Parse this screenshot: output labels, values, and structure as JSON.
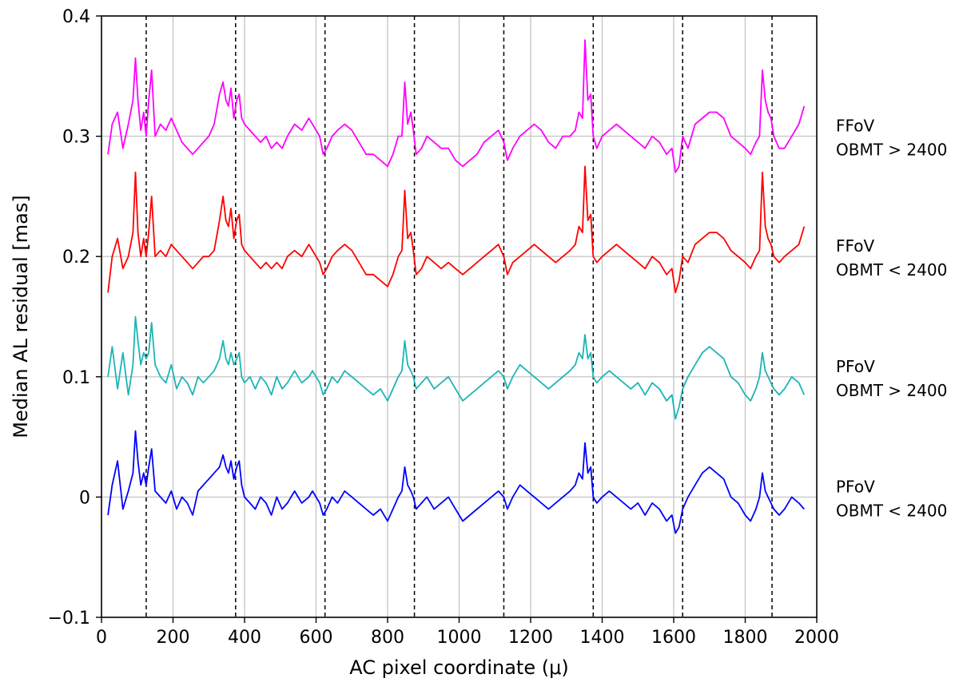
{
  "chart_data": {
    "type": "line",
    "title": "",
    "xlabel": "AC pixel coordinate (μ)",
    "ylabel": "Median AL residual [mas]",
    "xlim": [
      0,
      2000
    ],
    "ylim": [
      -0.1,
      0.4
    ],
    "xticks": [
      0,
      200,
      400,
      600,
      800,
      1000,
      1200,
      1400,
      1600,
      1800,
      2000
    ],
    "xtick_labels": [
      "0",
      "200",
      "400",
      "600",
      "800",
      "1000",
      "1200",
      "1400",
      "1600",
      "1800",
      "2000"
    ],
    "yticks": [
      -0.1,
      0,
      0.1,
      0.2,
      0.3,
      0.4
    ],
    "ytick_labels": [
      "−0.1",
      "0",
      "0.1",
      "0.2",
      "0.3",
      "0.4"
    ],
    "grid": true,
    "vertical_gridlines_x": [
      200,
      400,
      600,
      800,
      1000,
      1200,
      1400,
      1600,
      1800
    ],
    "horizontal_gridlines_y": [
      0,
      0.1,
      0.2,
      0.3
    ],
    "dashed_lines_x": [
      125,
      375,
      625,
      875,
      1125,
      1375,
      1625,
      1875
    ],
    "legend_placement": "right-side text labels",
    "series": [
      {
        "label_lines": [
          "FFoV",
          "OBMT > 2400"
        ],
        "color": "#ff00ff",
        "x": [
          18,
          30,
          45,
          60,
          75,
          88,
          95,
          102,
          110,
          118,
          125,
          132,
          140,
          150,
          165,
          180,
          195,
          210,
          225,
          240,
          255,
          270,
          285,
          300,
          315,
          330,
          340,
          348,
          355,
          362,
          370,
          378,
          385,
          392,
          400,
          415,
          430,
          445,
          460,
          475,
          490,
          505,
          520,
          540,
          560,
          580,
          590,
          600,
          610,
          620,
          630,
          645,
          660,
          680,
          700,
          720,
          740,
          760,
          780,
          800,
          815,
          830,
          840,
          848,
          856,
          865,
          872,
          880,
          895,
          910,
          930,
          950,
          970,
          990,
          1010,
          1030,
          1050,
          1070,
          1090,
          1110,
          1125,
          1135,
          1150,
          1170,
          1190,
          1210,
          1230,
          1250,
          1270,
          1290,
          1310,
          1325,
          1335,
          1345,
          1352,
          1360,
          1368,
          1375,
          1385,
          1400,
          1420,
          1440,
          1460,
          1480,
          1500,
          1520,
          1540,
          1560,
          1580,
          1595,
          1605,
          1615,
          1625,
          1640,
          1660,
          1680,
          1700,
          1720,
          1740,
          1760,
          1780,
          1800,
          1815,
          1830,
          1840,
          1848,
          1856,
          1864,
          1872,
          1880,
          1895,
          1910,
          1930,
          1950,
          1965
        ],
        "y": [
          0.285,
          0.31,
          0.32,
          0.29,
          0.31,
          0.33,
          0.365,
          0.33,
          0.305,
          0.32,
          0.3,
          0.33,
          0.355,
          0.3,
          0.31,
          0.305,
          0.315,
          0.305,
          0.295,
          0.29,
          0.285,
          0.29,
          0.295,
          0.3,
          0.31,
          0.335,
          0.345,
          0.33,
          0.325,
          0.34,
          0.315,
          0.33,
          0.335,
          0.315,
          0.31,
          0.305,
          0.3,
          0.295,
          0.3,
          0.29,
          0.295,
          0.29,
          0.3,
          0.31,
          0.305,
          0.315,
          0.31,
          0.305,
          0.3,
          0.285,
          0.29,
          0.3,
          0.305,
          0.31,
          0.305,
          0.295,
          0.285,
          0.285,
          0.28,
          0.275,
          0.285,
          0.3,
          0.3,
          0.345,
          0.31,
          0.32,
          0.305,
          0.285,
          0.29,
          0.3,
          0.295,
          0.29,
          0.29,
          0.28,
          0.275,
          0.28,
          0.285,
          0.295,
          0.3,
          0.305,
          0.295,
          0.28,
          0.29,
          0.3,
          0.305,
          0.31,
          0.305,
          0.295,
          0.29,
          0.3,
          0.3,
          0.305,
          0.32,
          0.315,
          0.38,
          0.33,
          0.335,
          0.3,
          0.29,
          0.3,
          0.305,
          0.31,
          0.305,
          0.3,
          0.295,
          0.29,
          0.3,
          0.295,
          0.285,
          0.29,
          0.27,
          0.275,
          0.3,
          0.29,
          0.31,
          0.315,
          0.32,
          0.32,
          0.315,
          0.3,
          0.295,
          0.29,
          0.285,
          0.295,
          0.3,
          0.355,
          0.33,
          0.32,
          0.315,
          0.3,
          0.29,
          0.29,
          0.3,
          0.31,
          0.325
        ]
      },
      {
        "label_lines": [
          "FFoV",
          "OBMT < 2400"
        ],
        "color": "#ff0000",
        "x": [
          18,
          30,
          45,
          60,
          75,
          88,
          95,
          102,
          110,
          118,
          125,
          132,
          140,
          150,
          165,
          180,
          195,
          210,
          225,
          240,
          255,
          270,
          285,
          300,
          315,
          330,
          340,
          348,
          355,
          362,
          370,
          378,
          385,
          392,
          400,
          415,
          430,
          445,
          460,
          475,
          490,
          505,
          520,
          540,
          560,
          580,
          590,
          600,
          610,
          620,
          630,
          645,
          660,
          680,
          700,
          720,
          740,
          760,
          780,
          800,
          815,
          830,
          840,
          848,
          856,
          865,
          872,
          880,
          895,
          910,
          930,
          950,
          970,
          990,
          1010,
          1030,
          1050,
          1070,
          1090,
          1110,
          1125,
          1135,
          1150,
          1170,
          1190,
          1210,
          1230,
          1250,
          1270,
          1290,
          1310,
          1325,
          1335,
          1345,
          1352,
          1360,
          1368,
          1375,
          1385,
          1400,
          1420,
          1440,
          1460,
          1480,
          1500,
          1520,
          1540,
          1560,
          1580,
          1595,
          1605,
          1615,
          1625,
          1640,
          1660,
          1680,
          1700,
          1720,
          1740,
          1760,
          1780,
          1800,
          1815,
          1830,
          1840,
          1848,
          1856,
          1864,
          1872,
          1880,
          1895,
          1910,
          1930,
          1950,
          1965
        ],
        "y": [
          0.17,
          0.2,
          0.215,
          0.19,
          0.2,
          0.22,
          0.27,
          0.22,
          0.2,
          0.215,
          0.2,
          0.22,
          0.25,
          0.2,
          0.205,
          0.2,
          0.21,
          0.205,
          0.2,
          0.195,
          0.19,
          0.195,
          0.2,
          0.2,
          0.205,
          0.23,
          0.25,
          0.23,
          0.225,
          0.24,
          0.215,
          0.23,
          0.235,
          0.21,
          0.205,
          0.2,
          0.195,
          0.19,
          0.195,
          0.19,
          0.195,
          0.19,
          0.2,
          0.205,
          0.2,
          0.21,
          0.205,
          0.2,
          0.195,
          0.185,
          0.19,
          0.2,
          0.205,
          0.21,
          0.205,
          0.195,
          0.185,
          0.185,
          0.18,
          0.175,
          0.185,
          0.2,
          0.205,
          0.255,
          0.215,
          0.22,
          0.205,
          0.185,
          0.19,
          0.2,
          0.195,
          0.19,
          0.195,
          0.19,
          0.185,
          0.19,
          0.195,
          0.2,
          0.205,
          0.21,
          0.2,
          0.185,
          0.195,
          0.2,
          0.205,
          0.21,
          0.205,
          0.2,
          0.195,
          0.2,
          0.205,
          0.21,
          0.225,
          0.22,
          0.275,
          0.23,
          0.235,
          0.2,
          0.195,
          0.2,
          0.205,
          0.21,
          0.205,
          0.2,
          0.195,
          0.19,
          0.2,
          0.195,
          0.185,
          0.19,
          0.17,
          0.18,
          0.2,
          0.195,
          0.21,
          0.215,
          0.22,
          0.22,
          0.215,
          0.205,
          0.2,
          0.195,
          0.19,
          0.2,
          0.205,
          0.27,
          0.225,
          0.215,
          0.21,
          0.2,
          0.195,
          0.2,
          0.205,
          0.21,
          0.225
        ]
      },
      {
        "label_lines": [
          "PFoV",
          "OBMT > 2400"
        ],
        "color": "#1cb5b5",
        "x": [
          18,
          30,
          45,
          60,
          75,
          88,
          95,
          102,
          110,
          118,
          125,
          132,
          140,
          150,
          165,
          180,
          195,
          210,
          225,
          240,
          255,
          270,
          285,
          300,
          315,
          330,
          340,
          348,
          355,
          362,
          370,
          378,
          385,
          392,
          400,
          415,
          430,
          445,
          460,
          475,
          490,
          505,
          520,
          540,
          560,
          580,
          590,
          600,
          610,
          620,
          630,
          645,
          660,
          680,
          700,
          720,
          740,
          760,
          780,
          800,
          815,
          830,
          840,
          848,
          856,
          865,
          872,
          880,
          895,
          910,
          930,
          950,
          970,
          990,
          1010,
          1030,
          1050,
          1070,
          1090,
          1110,
          1125,
          1135,
          1150,
          1170,
          1190,
          1210,
          1230,
          1250,
          1270,
          1290,
          1310,
          1325,
          1335,
          1345,
          1352,
          1360,
          1368,
          1375,
          1385,
          1400,
          1420,
          1440,
          1460,
          1480,
          1500,
          1520,
          1540,
          1560,
          1580,
          1595,
          1605,
          1615,
          1625,
          1640,
          1660,
          1680,
          1700,
          1720,
          1740,
          1760,
          1780,
          1800,
          1815,
          1830,
          1840,
          1848,
          1856,
          1864,
          1872,
          1880,
          1895,
          1910,
          1930,
          1950,
          1965
        ],
        "y": [
          0.1,
          0.125,
          0.09,
          0.12,
          0.085,
          0.11,
          0.15,
          0.13,
          0.11,
          0.12,
          0.115,
          0.12,
          0.145,
          0.11,
          0.1,
          0.095,
          0.11,
          0.09,
          0.1,
          0.095,
          0.085,
          0.1,
          0.095,
          0.1,
          0.105,
          0.115,
          0.13,
          0.115,
          0.11,
          0.12,
          0.11,
          0.115,
          0.12,
          0.1,
          0.095,
          0.1,
          0.09,
          0.1,
          0.095,
          0.085,
          0.1,
          0.09,
          0.095,
          0.105,
          0.095,
          0.1,
          0.105,
          0.1,
          0.095,
          0.085,
          0.09,
          0.1,
          0.095,
          0.105,
          0.1,
          0.095,
          0.09,
          0.085,
          0.09,
          0.08,
          0.09,
          0.1,
          0.105,
          0.13,
          0.11,
          0.105,
          0.1,
          0.09,
          0.095,
          0.1,
          0.09,
          0.095,
          0.1,
          0.09,
          0.08,
          0.085,
          0.09,
          0.095,
          0.1,
          0.105,
          0.1,
          0.09,
          0.1,
          0.11,
          0.105,
          0.1,
          0.095,
          0.09,
          0.095,
          0.1,
          0.105,
          0.11,
          0.12,
          0.115,
          0.135,
          0.115,
          0.12,
          0.1,
          0.095,
          0.1,
          0.105,
          0.1,
          0.095,
          0.09,
          0.095,
          0.085,
          0.095,
          0.09,
          0.08,
          0.085,
          0.065,
          0.075,
          0.09,
          0.1,
          0.11,
          0.12,
          0.125,
          0.12,
          0.115,
          0.1,
          0.095,
          0.085,
          0.08,
          0.09,
          0.1,
          0.12,
          0.105,
          0.1,
          0.095,
          0.09,
          0.085,
          0.09,
          0.1,
          0.095,
          0.085
        ]
      },
      {
        "label_lines": [
          "PFoV",
          "OBMT < 2400"
        ],
        "color": "#0000ff",
        "x": [
          18,
          30,
          45,
          60,
          75,
          88,
          95,
          102,
          110,
          118,
          125,
          132,
          140,
          150,
          165,
          180,
          195,
          210,
          225,
          240,
          255,
          270,
          285,
          300,
          315,
          330,
          340,
          348,
          355,
          362,
          370,
          378,
          385,
          392,
          400,
          415,
          430,
          445,
          460,
          475,
          490,
          505,
          520,
          540,
          560,
          580,
          590,
          600,
          610,
          620,
          630,
          645,
          660,
          680,
          700,
          720,
          740,
          760,
          780,
          800,
          815,
          830,
          840,
          848,
          856,
          865,
          872,
          880,
          895,
          910,
          930,
          950,
          970,
          990,
          1010,
          1030,
          1050,
          1070,
          1090,
          1110,
          1125,
          1135,
          1150,
          1170,
          1190,
          1210,
          1230,
          1250,
          1270,
          1290,
          1310,
          1325,
          1335,
          1345,
          1352,
          1360,
          1368,
          1375,
          1385,
          1400,
          1420,
          1440,
          1460,
          1480,
          1500,
          1520,
          1540,
          1560,
          1580,
          1595,
          1605,
          1615,
          1625,
          1640,
          1660,
          1680,
          1700,
          1720,
          1740,
          1760,
          1780,
          1800,
          1815,
          1830,
          1840,
          1848,
          1856,
          1864,
          1872,
          1880,
          1895,
          1910,
          1930,
          1950,
          1965
        ],
        "y": [
          -0.015,
          0.01,
          0.03,
          -0.01,
          0.005,
          0.02,
          0.055,
          0.03,
          0.01,
          0.02,
          0.01,
          0.025,
          0.04,
          0.005,
          0.0,
          -0.005,
          0.005,
          -0.01,
          0.0,
          -0.005,
          -0.015,
          0.005,
          0.01,
          0.015,
          0.02,
          0.025,
          0.035,
          0.025,
          0.02,
          0.03,
          0.015,
          0.025,
          0.03,
          0.01,
          0.0,
          -0.005,
          -0.01,
          0.0,
          -0.005,
          -0.015,
          0.0,
          -0.01,
          -0.005,
          0.005,
          -0.005,
          0.0,
          0.005,
          0.0,
          -0.005,
          -0.015,
          -0.01,
          0.0,
          -0.005,
          0.005,
          0.0,
          -0.005,
          -0.01,
          -0.015,
          -0.01,
          -0.02,
          -0.01,
          0.0,
          0.005,
          0.025,
          0.01,
          0.005,
          0.0,
          -0.01,
          -0.005,
          0.0,
          -0.01,
          -0.005,
          0.0,
          -0.01,
          -0.02,
          -0.015,
          -0.01,
          -0.005,
          0.0,
          0.005,
          0.0,
          -0.01,
          0.0,
          0.01,
          0.005,
          0.0,
          -0.005,
          -0.01,
          -0.005,
          0.0,
          0.005,
          0.01,
          0.02,
          0.015,
          0.045,
          0.02,
          0.025,
          0.0,
          -0.005,
          0.0,
          0.005,
          0.0,
          -0.005,
          -0.01,
          -0.005,
          -0.015,
          -0.005,
          -0.01,
          -0.02,
          -0.015,
          -0.03,
          -0.025,
          -0.01,
          0.0,
          0.01,
          0.02,
          0.025,
          0.02,
          0.015,
          0.0,
          -0.005,
          -0.015,
          -0.02,
          -0.01,
          0.0,
          0.02,
          0.005,
          0.0,
          -0.005,
          -0.01,
          -0.015,
          -0.01,
          0.0,
          -0.005,
          -0.01
        ]
      }
    ]
  }
}
